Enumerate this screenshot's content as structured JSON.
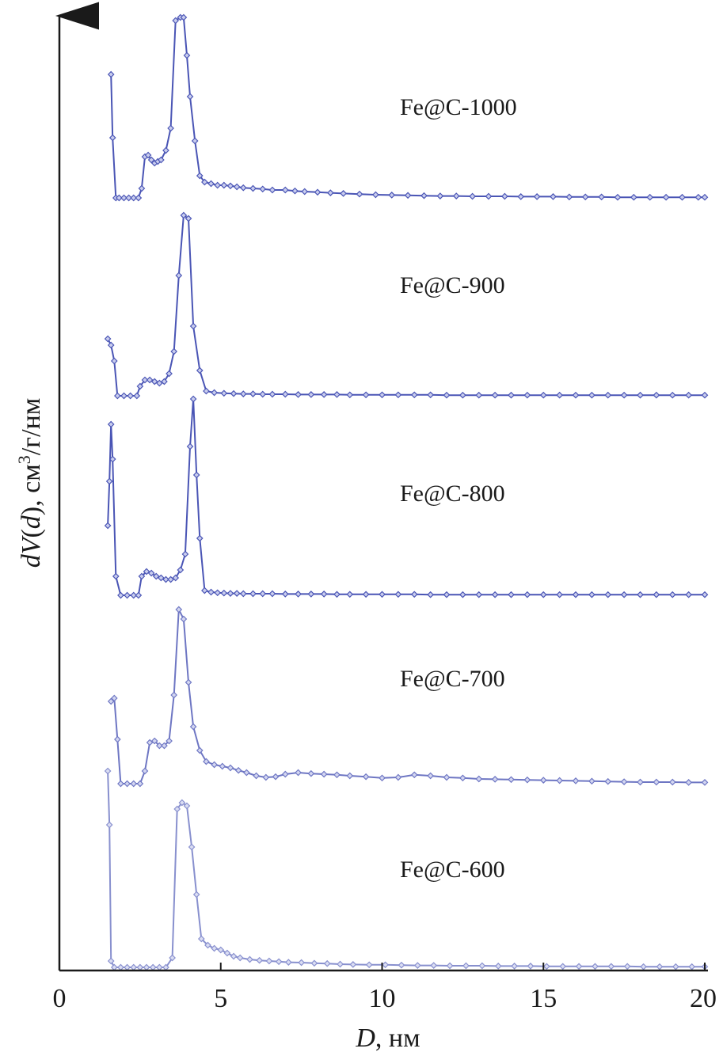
{
  "chart_data": {
    "type": "line",
    "xlabel_italic": "D",
    "xlabel_rest": ", нм",
    "ylabel_italic": "dV",
    "ylabel_paren_open": "(",
    "ylabel_d": "d",
    "ylabel_paren_close": ")",
    "ylabel_unit": ", см",
    "ylabel_sup": "3",
    "ylabel_tail": "/г/нм",
    "xlim": [
      0,
      20
    ],
    "xticks": [
      "0",
      "5",
      "10",
      "15",
      "20"
    ],
    "y_ticks_shown": false,
    "grid": false,
    "legend": "labels beside each curve",
    "series_color": "#4a55b5",
    "series": [
      {
        "name": "Fe@C-1000",
        "x": [
          1.6,
          1.65,
          1.75,
          1.85,
          2.0,
          2.15,
          2.3,
          2.45,
          2.55,
          2.65,
          2.75,
          2.85,
          2.95,
          3.05,
          3.15,
          3.3,
          3.45,
          3.6,
          3.75,
          3.85,
          3.95,
          4.05,
          4.2,
          4.35,
          4.5,
          4.7,
          4.9,
          5.1,
          5.3,
          5.5,
          5.7,
          6.0,
          6.3,
          6.6,
          7.0,
          7.3,
          7.6,
          8.0,
          8.4,
          8.8,
          9.3,
          9.8,
          10.3,
          10.8,
          11.3,
          11.8,
          12.3,
          12.8,
          13.3,
          13.8,
          14.3,
          14.8,
          15.3,
          15.8,
          16.3,
          16.8,
          17.3,
          17.8,
          18.3,
          18.8,
          19.3,
          19.8,
          20.0
        ],
        "y": [
          3.9,
          1.9,
          0.0,
          0.0,
          0.0,
          0.0,
          0.0,
          0.0,
          0.3,
          1.3,
          1.35,
          1.2,
          1.1,
          1.15,
          1.2,
          1.5,
          2.2,
          5.6,
          5.7,
          5.7,
          4.5,
          3.2,
          1.8,
          0.7,
          0.5,
          0.45,
          0.4,
          0.4,
          0.38,
          0.35,
          0.32,
          0.3,
          0.28,
          0.25,
          0.25,
          0.22,
          0.2,
          0.18,
          0.16,
          0.14,
          0.12,
          0.1,
          0.09,
          0.08,
          0.07,
          0.06,
          0.06,
          0.05,
          0.05,
          0.05,
          0.04,
          0.04,
          0.04,
          0.03,
          0.03,
          0.03,
          0.02,
          0.02,
          0.02,
          0.02,
          0.02,
          0.02,
          0.02
        ]
      },
      {
        "name": "Fe@C-900",
        "x": [
          1.5,
          1.6,
          1.7,
          1.8,
          2.0,
          2.2,
          2.4,
          2.5,
          2.65,
          2.8,
          2.95,
          3.1,
          3.25,
          3.4,
          3.55,
          3.7,
          3.85,
          4.0,
          4.15,
          4.35,
          4.55,
          4.8,
          5.1,
          5.4,
          5.7,
          6.0,
          6.3,
          6.6,
          7.0,
          7.4,
          7.8,
          8.2,
          8.6,
          9.0,
          9.5,
          10.0,
          10.5,
          11.0,
          11.5,
          12.0,
          12.5,
          13.0,
          13.5,
          14.0,
          14.5,
          15.0,
          15.5,
          16.0,
          16.5,
          17.0,
          17.5,
          18.0,
          18.5,
          19.0,
          19.5,
          20.0
        ],
        "y": [
          1.8,
          1.6,
          1.1,
          0.0,
          0.0,
          0.0,
          0.0,
          0.3,
          0.5,
          0.5,
          0.45,
          0.4,
          0.45,
          0.7,
          1.4,
          3.8,
          5.7,
          5.6,
          2.2,
          0.8,
          0.15,
          0.1,
          0.08,
          0.07,
          0.06,
          0.06,
          0.05,
          0.05,
          0.05,
          0.04,
          0.04,
          0.04,
          0.04,
          0.03,
          0.03,
          0.03,
          0.03,
          0.03,
          0.03,
          0.02,
          0.02,
          0.02,
          0.02,
          0.02,
          0.02,
          0.02,
          0.02,
          0.02,
          0.02,
          0.02,
          0.02,
          0.02,
          0.02,
          0.02,
          0.02,
          0.02
        ]
      },
      {
        "name": "Fe@C-800",
        "x": [
          1.5,
          1.55,
          1.6,
          1.65,
          1.75,
          1.9,
          2.1,
          2.3,
          2.45,
          2.55,
          2.7,
          2.85,
          3.0,
          3.15,
          3.3,
          3.45,
          3.6,
          3.75,
          3.9,
          4.05,
          4.15,
          4.25,
          4.35,
          4.5,
          4.7,
          4.9,
          5.1,
          5.3,
          5.5,
          5.7,
          6.0,
          6.3,
          6.6,
          7.0,
          7.4,
          7.8,
          8.2,
          8.6,
          9.0,
          9.5,
          10.0,
          10.5,
          11.0,
          11.5,
          12.0,
          12.5,
          13.0,
          13.5,
          14.0,
          14.5,
          15.0,
          15.5,
          16.0,
          16.5,
          17.0,
          17.5,
          18.0,
          18.5,
          19.0,
          19.5,
          20.0
        ],
        "y": [
          2.2,
          3.6,
          5.4,
          4.3,
          0.6,
          0.0,
          0.0,
          0.0,
          0.0,
          0.6,
          0.75,
          0.7,
          0.6,
          0.55,
          0.5,
          0.5,
          0.55,
          0.8,
          1.3,
          4.7,
          6.2,
          3.8,
          1.8,
          0.15,
          0.1,
          0.08,
          0.07,
          0.06,
          0.06,
          0.05,
          0.05,
          0.05,
          0.05,
          0.04,
          0.04,
          0.04,
          0.04,
          0.03,
          0.03,
          0.03,
          0.03,
          0.03,
          0.03,
          0.02,
          0.02,
          0.02,
          0.02,
          0.02,
          0.02,
          0.02,
          0.02,
          0.02,
          0.02,
          0.02,
          0.02,
          0.02,
          0.02,
          0.02,
          0.02,
          0.02,
          0.02
        ]
      },
      {
        "name": "Fe@C-700",
        "x": [
          1.6,
          1.7,
          1.8,
          1.9,
          2.1,
          2.3,
          2.5,
          2.65,
          2.8,
          2.95,
          3.1,
          3.25,
          3.4,
          3.55,
          3.7,
          3.85,
          4.0,
          4.15,
          4.35,
          4.55,
          4.8,
          5.05,
          5.3,
          5.55,
          5.8,
          6.1,
          6.4,
          6.7,
          7.0,
          7.4,
          7.8,
          8.2,
          8.6,
          9.0,
          9.5,
          10.0,
          10.5,
          11.0,
          11.5,
          12.0,
          12.5,
          13.0,
          13.5,
          14.0,
          14.5,
          15.0,
          15.5,
          16.0,
          16.5,
          17.0,
          17.5,
          18.0,
          18.5,
          19.0,
          19.5,
          20.0
        ],
        "y": [
          2.6,
          2.7,
          1.4,
          0.0,
          0.0,
          0.0,
          0.0,
          0.4,
          1.3,
          1.35,
          1.2,
          1.2,
          1.35,
          2.8,
          5.5,
          5.2,
          3.2,
          1.8,
          1.05,
          0.7,
          0.6,
          0.55,
          0.5,
          0.42,
          0.35,
          0.25,
          0.2,
          0.22,
          0.3,
          0.35,
          0.32,
          0.3,
          0.28,
          0.25,
          0.22,
          0.18,
          0.2,
          0.28,
          0.25,
          0.2,
          0.18,
          0.15,
          0.14,
          0.13,
          0.12,
          0.11,
          0.1,
          0.09,
          0.08,
          0.07,
          0.06,
          0.05,
          0.05,
          0.05,
          0.04,
          0.04
        ]
      },
      {
        "name": "Fe@C-600",
        "x": [
          1.5,
          1.55,
          1.6,
          1.7,
          1.9,
          2.1,
          2.3,
          2.5,
          2.7,
          2.9,
          3.1,
          3.3,
          3.5,
          3.65,
          3.8,
          3.95,
          4.1,
          4.25,
          4.4,
          4.6,
          4.8,
          5.0,
          5.2,
          5.4,
          5.6,
          5.9,
          6.2,
          6.5,
          6.8,
          7.1,
          7.5,
          7.9,
          8.3,
          8.7,
          9.1,
          9.6,
          10.1,
          10.6,
          11.1,
          11.6,
          12.1,
          12.6,
          13.1,
          13.6,
          14.1,
          14.6,
          15.1,
          15.6,
          16.1,
          16.6,
          17.1,
          17.6,
          18.1,
          18.6,
          19.1,
          19.6,
          20.0
        ],
        "y": [
          6.2,
          4.5,
          0.2,
          0.0,
          0.0,
          0.0,
          0.0,
          0.0,
          0.0,
          0.0,
          0.0,
          0.0,
          0.3,
          5.0,
          5.2,
          5.1,
          3.8,
          2.3,
          0.9,
          0.7,
          0.6,
          0.55,
          0.45,
          0.35,
          0.3,
          0.25,
          0.22,
          0.2,
          0.18,
          0.16,
          0.15,
          0.13,
          0.12,
          0.1,
          0.09,
          0.08,
          0.08,
          0.07,
          0.06,
          0.06,
          0.05,
          0.05,
          0.05,
          0.04,
          0.04,
          0.04,
          0.03,
          0.03,
          0.03,
          0.03,
          0.03,
          0.03,
          0.02,
          0.02,
          0.02,
          0.02,
          0.02
        ]
      }
    ]
  }
}
